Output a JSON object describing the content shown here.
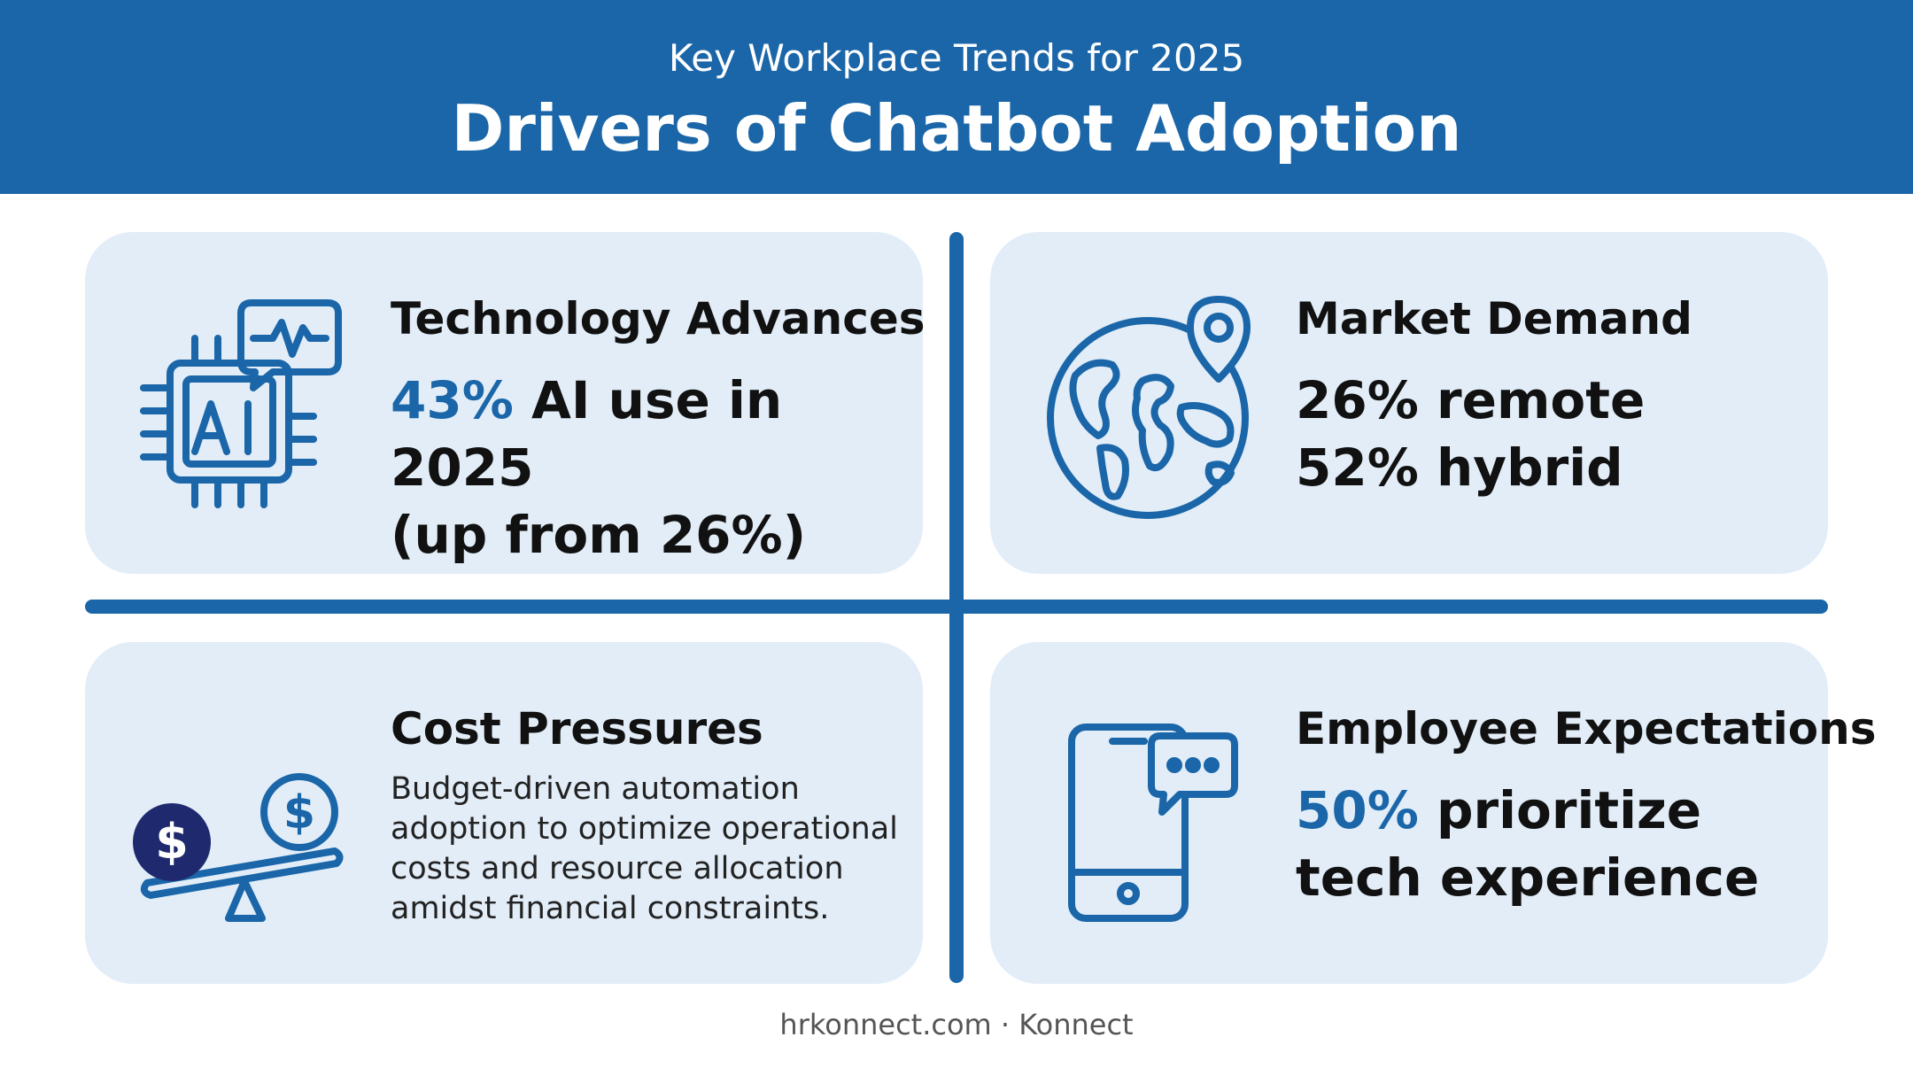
{
  "header": {
    "subtitle": "Key Workplace Trends for 2025",
    "title": "Drivers of Chatbot Adoption"
  },
  "colors": {
    "brand_blue": "#1a66a8",
    "card_bg": "#e2edf8",
    "coin_dark": "#1f2a6e"
  },
  "cards": {
    "technology": {
      "icon": "ai-chip-chat-icon",
      "title": "Technology Advances",
      "stat_highlight": "43%",
      "stat_line1_rest": " AI use in 2025",
      "stat_line2": "(up from 26%)"
    },
    "market": {
      "icon": "globe-location-pin-icon",
      "title": "Market Demand",
      "stat_line1": "26% remote",
      "stat_line2": "52% hybrid"
    },
    "cost": {
      "icon": "coins-balance-scale-icon",
      "title": "Cost Pressures",
      "description_lines": [
        "Budget-driven automation",
        "adoption to optimize operational",
        "costs and resource allocation",
        "amidst financial constraints."
      ]
    },
    "employee": {
      "icon": "smartphone-chat-icon",
      "title": "Employee Expectations",
      "stat_highlight": "50%",
      "stat_line1_rest": " prioritize",
      "stat_line2": "tech experience"
    }
  },
  "footer": {
    "text": "hrkonnect.com · Konnect"
  }
}
